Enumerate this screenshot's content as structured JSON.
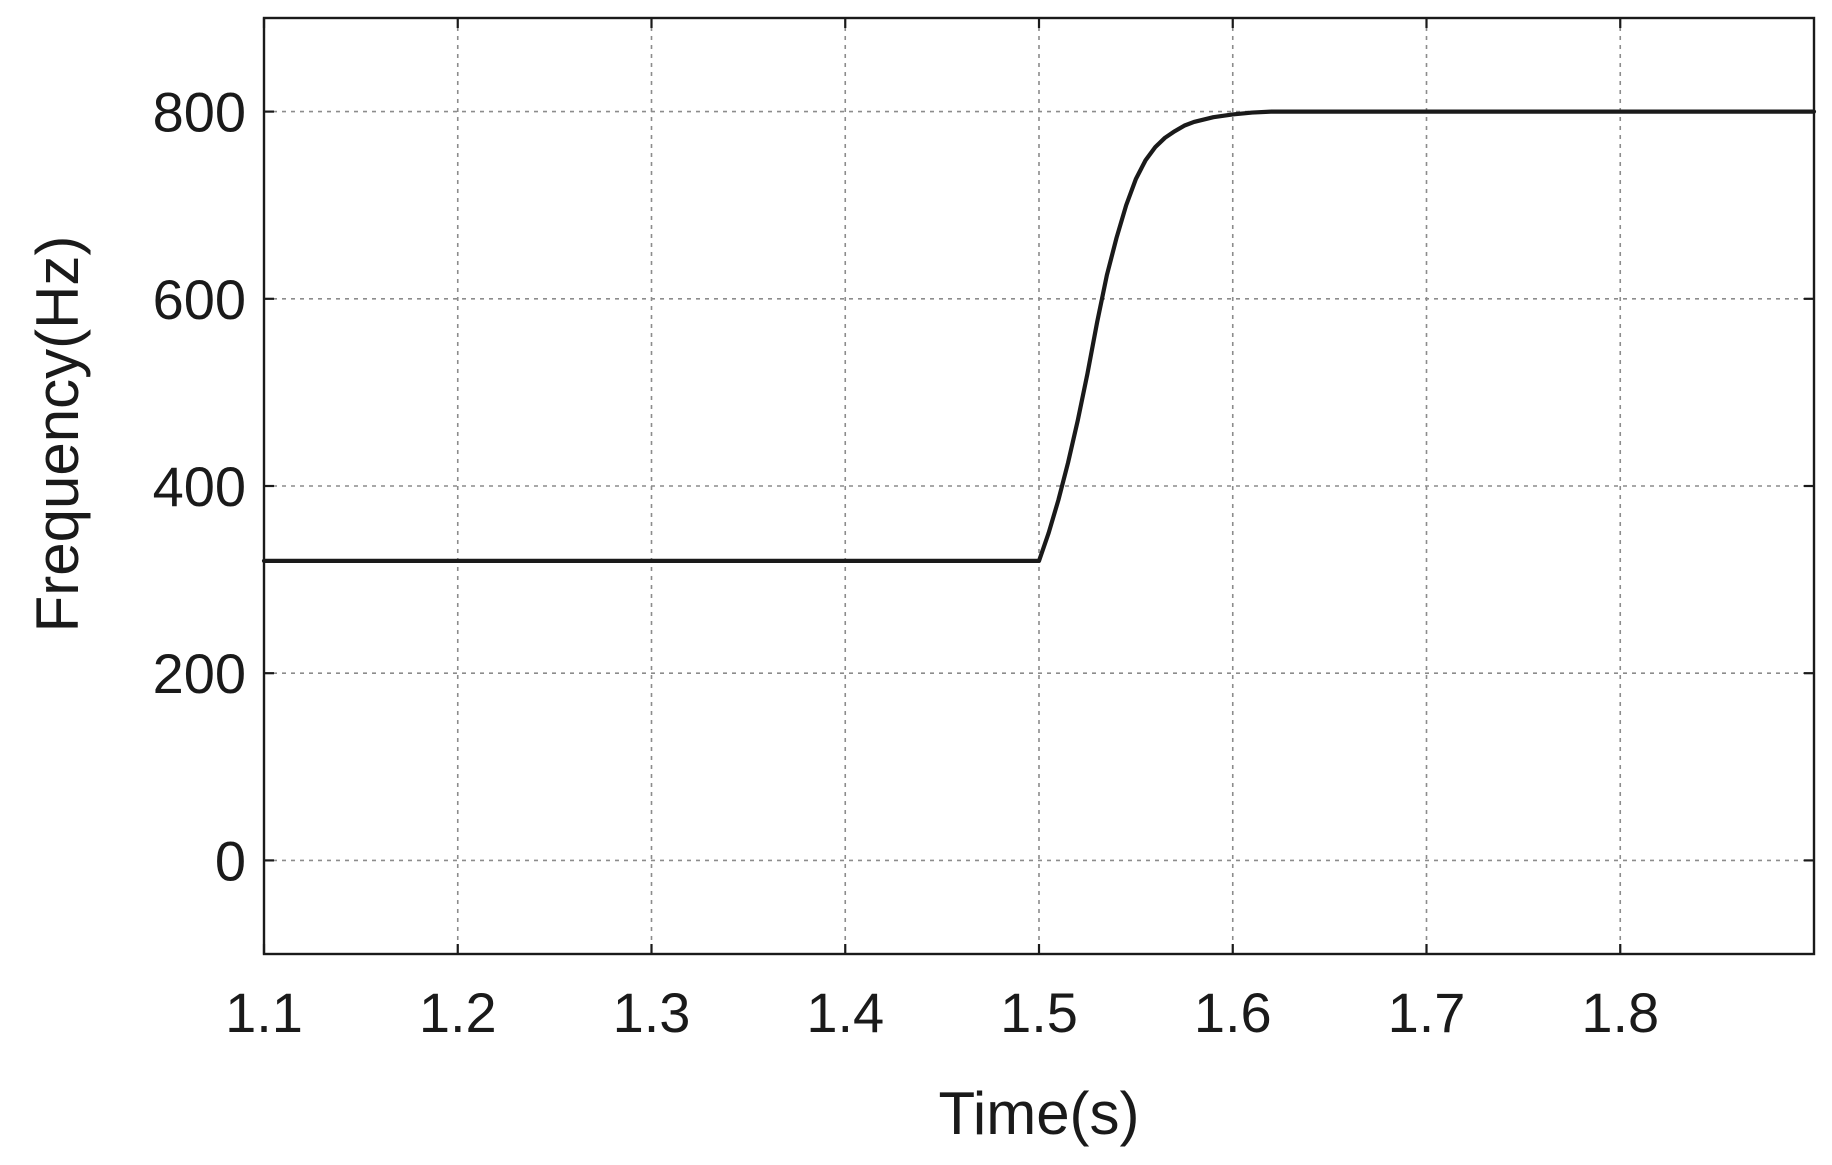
{
  "chart_data": {
    "type": "line",
    "title": "",
    "xlabel": "Time(s)",
    "ylabel": "Frequency(Hz)",
    "xlim": [
      1.1,
      1.9
    ],
    "ylim": [
      -100,
      900
    ],
    "x_ticks": [
      1.1,
      1.2,
      1.3,
      1.4,
      1.5,
      1.6,
      1.7,
      1.8
    ],
    "x_tick_labels": [
      "1.1",
      "1.2",
      "1.3",
      "1.4",
      "1.5",
      "1.6",
      "1.7",
      "1.8"
    ],
    "y_ticks": [
      0,
      200,
      400,
      600,
      800
    ],
    "y_tick_labels": [
      "0",
      "200",
      "400",
      "600",
      "800"
    ],
    "grid": true,
    "legend": "none",
    "line_color": "#1a1a1a",
    "series": [
      {
        "x": [
          1.1,
          1.2,
          1.3,
          1.4,
          1.5,
          1.505,
          1.51,
          1.515,
          1.52,
          1.525,
          1.53,
          1.535,
          1.54,
          1.545,
          1.55,
          1.555,
          1.56,
          1.565,
          1.57,
          1.575,
          1.58,
          1.59,
          1.6,
          1.61,
          1.62,
          1.63,
          1.65,
          1.7,
          1.8,
          1.9
        ],
        "y": [
          320,
          320,
          320,
          320,
          320,
          350,
          385,
          425,
          470,
          520,
          575,
          625,
          665,
          700,
          728,
          748,
          762,
          772,
          779,
          785,
          789,
          794,
          797,
          799,
          800,
          800,
          800,
          800,
          800,
          800
        ]
      }
    ]
  }
}
